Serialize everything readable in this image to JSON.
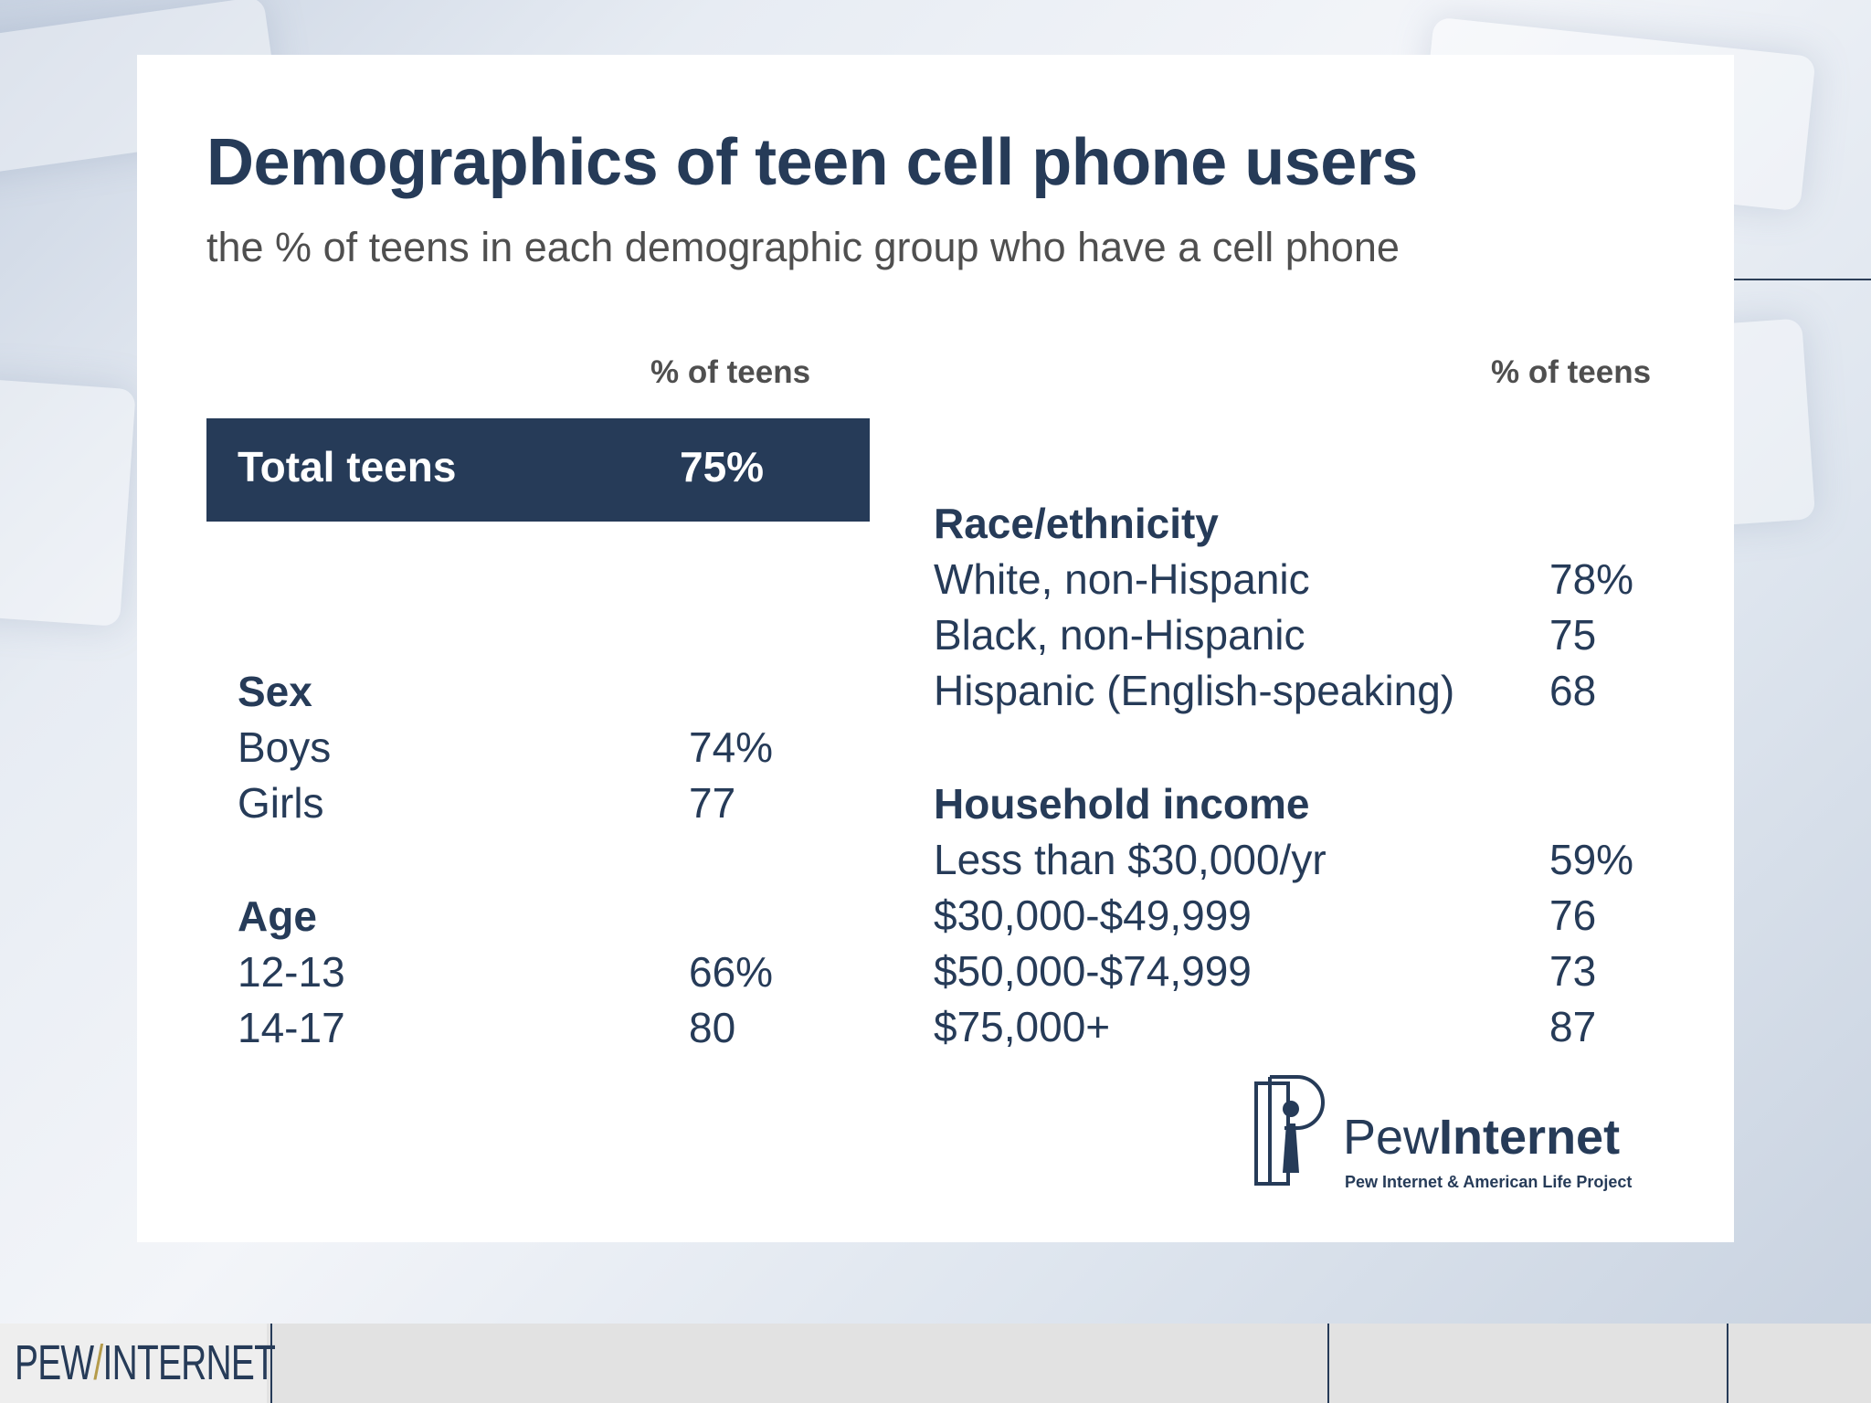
{
  "chart_data": {
    "type": "table",
    "title": "Demographics of teen cell phone users",
    "subtitle": "the % of teens in each demographic group who have a cell phone",
    "column_header": "% of teens",
    "total": {
      "label": "Total teens",
      "value": "75%"
    },
    "groups": [
      {
        "name": "Sex",
        "rows": [
          {
            "label": "Boys",
            "value": "74%"
          },
          {
            "label": "Girls",
            "value": "77"
          }
        ]
      },
      {
        "name": "Age",
        "rows": [
          {
            "label": "12-13",
            "value": "66%"
          },
          {
            "label": "14-17",
            "value": "80"
          }
        ]
      },
      {
        "name": "Race/ethnicity",
        "rows": [
          {
            "label": "White, non-Hispanic",
            "value": "78%"
          },
          {
            "label": "Black, non-Hispanic",
            "value": "75"
          },
          {
            "label": "Hispanic (English-speaking)",
            "value": "68"
          }
        ]
      },
      {
        "name": "Household income",
        "rows": [
          {
            "label": "Less than $30,000/yr",
            "value": "59%"
          },
          {
            "label": "$30,000-$49,999",
            "value": "76"
          },
          {
            "label": "$50,000-$74,999",
            "value": "73"
          },
          {
            "label": "$75,000+",
            "value": "87"
          }
        ]
      }
    ]
  },
  "brand": {
    "logo_light": "Pew",
    "logo_bold": "Internet",
    "project": "Pew Internet & American Life Project",
    "footer_left": "PEW",
    "footer_slash": "/",
    "footer_right": "INTERNET"
  },
  "colors": {
    "navy": "#263b58",
    "text_gray": "#4f4f4f",
    "footer_gray": "#e2e2e2",
    "accent_gold": "#b59b4a"
  }
}
